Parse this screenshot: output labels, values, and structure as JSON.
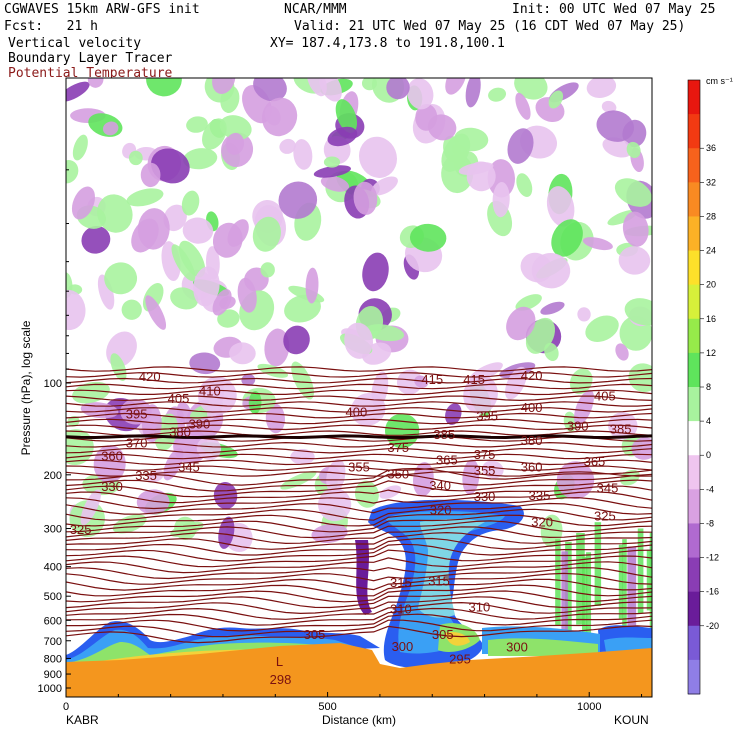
{
  "header": {
    "line1_left": "CGWAVES 15km ARW-GFS init",
    "line1_mid": "NCAR/MMM",
    "line1_right": "Init: 00 UTC Wed 07 May 25",
    "line2_left": "Fcst:   21 h",
    "line2_right": "Valid: 21 UTC Wed 07 May 25 (16 CDT Wed 07 May 25)",
    "line3_left": "Vertical velocity",
    "line3_right": "XY= 187.4,173.8 to 191.8,100.1",
    "line4_left": "Boundary Layer Tracer",
    "line5_left": "Potential Temperature"
  },
  "colorbar": {
    "units": "cm s⁻¹",
    "levels": [
      "36",
      "32",
      "28",
      "24",
      "20",
      "16",
      "12",
      "8",
      "4",
      "0",
      "-4",
      "-8",
      "-12",
      "-16",
      "-20"
    ],
    "colors": [
      "#e8170f",
      "#f23a12",
      "#f7621c",
      "#f98a22",
      "#fcb126",
      "#fde02a",
      "#d7f03a",
      "#96ea4a",
      "#5fe45c",
      "#a8f39e",
      "#ffffff",
      "#efc5ef",
      "#d9a1e2",
      "#b06ad0",
      "#8a3db4",
      "#6a1c9a",
      "#7a5ad6",
      "#8f7ee6"
    ],
    "color_names": "red-orange-yellow-green-white-pink-purple-blue"
  },
  "chart_data": {
    "type": "heatmap",
    "title": "Vertical velocity cross section",
    "xlabel": "Distance (km)",
    "ylabel": "Pressure (hPa), log scale",
    "x_ticks": [
      "0",
      "500",
      "1000"
    ],
    "xlim": [
      0,
      1120
    ],
    "y_ticks": [
      "100",
      "200",
      "300",
      "400",
      "500",
      "600",
      "700",
      "800",
      "900",
      "1000"
    ],
    "y_scale": "log",
    "left_endpoint": "KABR",
    "right_endpoint": "KOUN",
    "theta_contours": [
      {
        "label": "420",
        "x": 160,
        "p": 95
      },
      {
        "label": "405",
        "x": 215,
        "p": 112
      },
      {
        "label": "410",
        "x": 275,
        "p": 106
      },
      {
        "label": "395",
        "x": 135,
        "p": 126
      },
      {
        "label": "390",
        "x": 255,
        "p": 136
      },
      {
        "label": "380",
        "x": 218,
        "p": 144
      },
      {
        "label": "370",
        "x": 135,
        "p": 157
      },
      {
        "label": "360",
        "x": 88,
        "p": 173
      },
      {
        "label": "345",
        "x": 235,
        "p": 188
      },
      {
        "label": "335",
        "x": 153,
        "p": 200
      },
      {
        "label": "330",
        "x": 88,
        "p": 218
      },
      {
        "label": "325",
        "x": 28,
        "p": 301
      },
      {
        "label": "400",
        "x": 555,
        "p": 124
      },
      {
        "label": "415",
        "x": 700,
        "p": 97
      },
      {
        "label": "415",
        "x": 780,
        "p": 97
      },
      {
        "label": "395",
        "x": 805,
        "p": 128
      },
      {
        "label": "400",
        "x": 890,
        "p": 120
      },
      {
        "label": "420",
        "x": 890,
        "p": 94
      },
      {
        "label": "405",
        "x": 1030,
        "p": 110
      },
      {
        "label": "390",
        "x": 978,
        "p": 138
      },
      {
        "label": "385",
        "x": 1060,
        "p": 141
      },
      {
        "label": "385",
        "x": 723,
        "p": 147
      },
      {
        "label": "380",
        "x": 890,
        "p": 154
      },
      {
        "label": "375",
        "x": 635,
        "p": 162
      },
      {
        "label": "375",
        "x": 800,
        "p": 171
      },
      {
        "label": "365",
        "x": 728,
        "p": 178
      },
      {
        "label": "365",
        "x": 1010,
        "p": 180
      },
      {
        "label": "355",
        "x": 560,
        "p": 188
      },
      {
        "label": "350",
        "x": 635,
        "p": 198
      },
      {
        "label": "355",
        "x": 800,
        "p": 193
      },
      {
        "label": "360",
        "x": 890,
        "p": 188
      },
      {
        "label": "340",
        "x": 715,
        "p": 216
      },
      {
        "label": "330",
        "x": 800,
        "p": 235
      },
      {
        "label": "335",
        "x": 905,
        "p": 233
      },
      {
        "label": "345",
        "x": 1035,
        "p": 220
      },
      {
        "label": "320",
        "x": 716,
        "p": 260
      },
      {
        "label": "320",
        "x": 910,
        "p": 284
      },
      {
        "label": "325",
        "x": 1030,
        "p": 272
      },
      {
        "label": "315",
        "x": 640,
        "p": 449
      },
      {
        "label": "315",
        "x": 713,
        "p": 445
      },
      {
        "label": "310",
        "x": 640,
        "p": 548
      },
      {
        "label": "310",
        "x": 790,
        "p": 540
      },
      {
        "label": "305",
        "x": 475,
        "p": 665
      },
      {
        "label": "305",
        "x": 720,
        "p": 666
      },
      {
        "label": "300",
        "x": 862,
        "p": 732
      },
      {
        "label": "300",
        "x": 643,
        "p": 728
      },
      {
        "label": "295",
        "x": 753,
        "p": 800
      },
      {
        "label": "298",
        "x": 410,
        "p": 935
      }
    ],
    "low_marker": {
      "label": "L",
      "x": 408,
      "p": 815
    },
    "legend": [
      "Vertical velocity",
      "Boundary Layer Tracer",
      "Potential Temperature"
    ]
  }
}
